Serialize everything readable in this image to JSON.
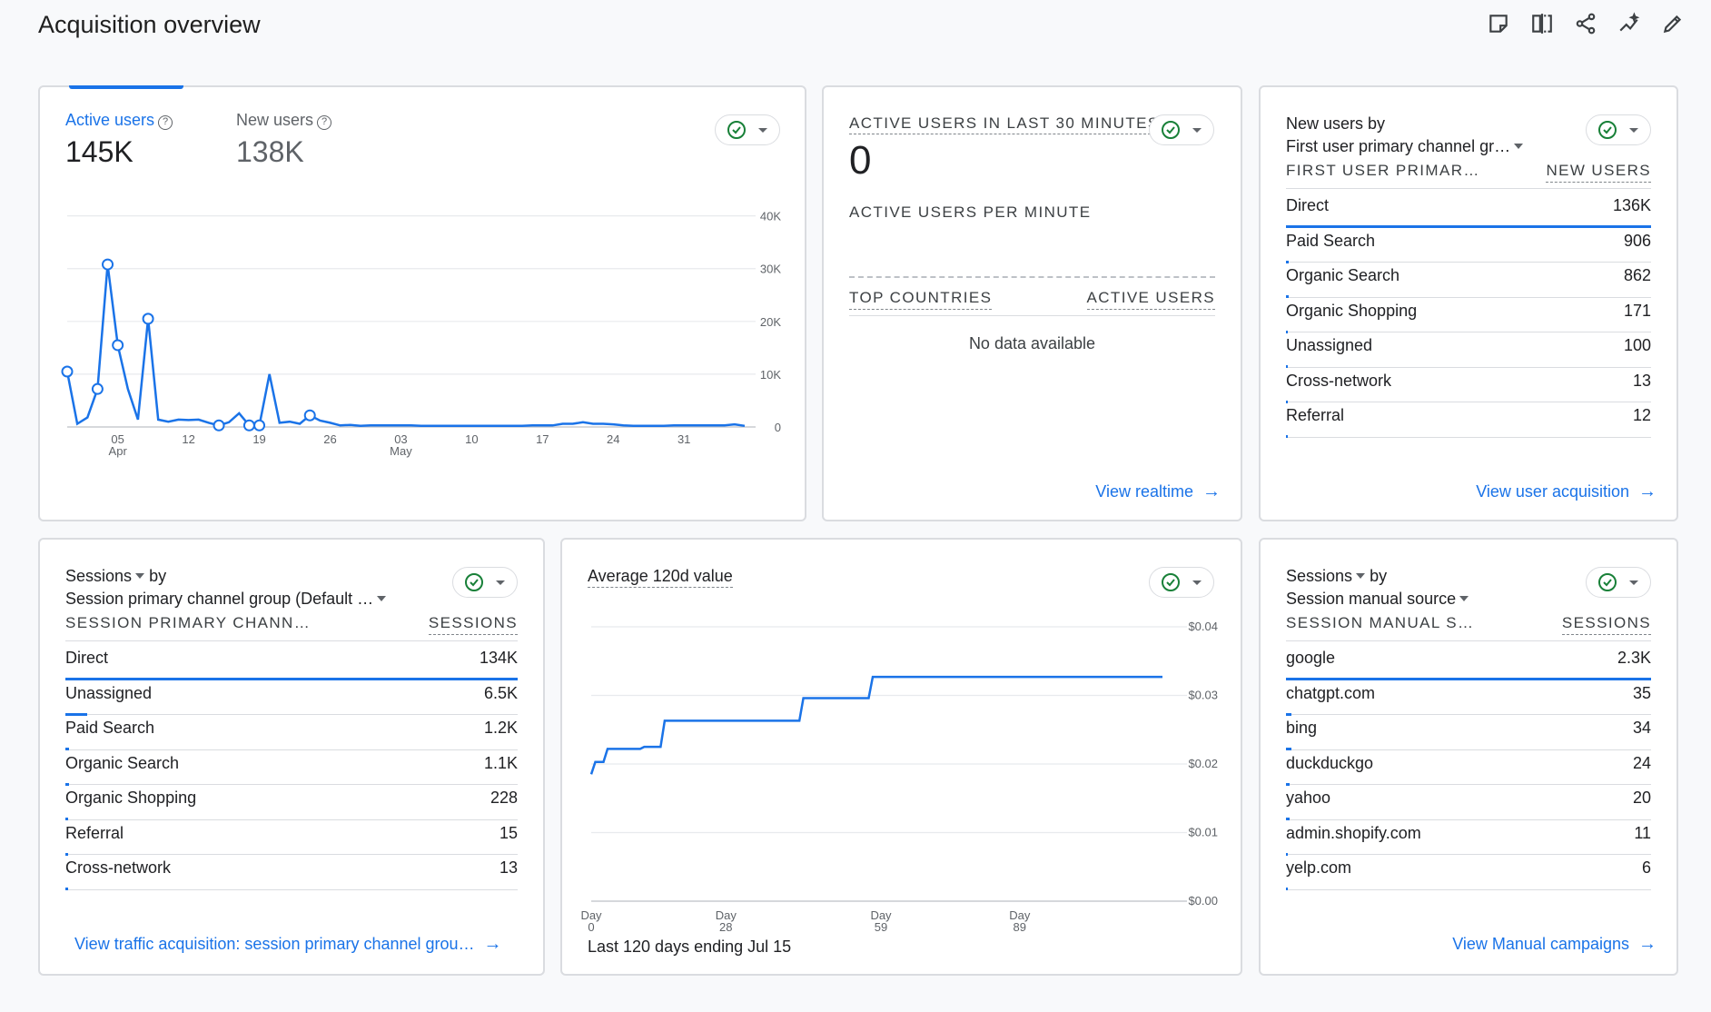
{
  "page": {
    "title": "Acquisition overview"
  },
  "toolbar": {
    "icons": [
      "note-icon",
      "compare-icon",
      "share-icon",
      "insights-icon",
      "edit-icon"
    ]
  },
  "card1": {
    "tabs": [
      {
        "label": "Active users",
        "value": "145K"
      },
      {
        "label": "New users",
        "value": "138K"
      }
    ],
    "help_glyph": "?",
    "chart_data": {
      "type": "line",
      "series": [
        {
          "name": "Active users",
          "values": [
            10500,
            600,
            1800,
            7200,
            30800,
            15500,
            7200,
            1400,
            20500,
            1400,
            1000,
            1400,
            1300,
            1400,
            800,
            300,
            900,
            2600,
            300,
            300,
            10000,
            800,
            1000,
            600,
            2200,
            1200,
            800,
            300,
            400,
            200,
            300,
            300,
            300,
            300,
            300,
            200,
            200,
            200,
            200,
            200,
            200,
            200,
            200,
            200,
            200,
            200,
            300,
            300,
            300,
            600,
            600,
            900,
            600,
            600,
            500,
            300,
            200,
            200,
            200,
            200,
            300,
            300,
            300,
            300,
            300,
            300,
            500,
            200
          ]
        }
      ],
      "x_tick_labels": [
        {
          "top": "05",
          "bottom": "Apr"
        },
        {
          "top": "12",
          "bottom": ""
        },
        {
          "top": "19",
          "bottom": ""
        },
        {
          "top": "26",
          "bottom": ""
        },
        {
          "top": "03",
          "bottom": "May"
        },
        {
          "top": "10",
          "bottom": ""
        },
        {
          "top": "17",
          "bottom": ""
        },
        {
          "top": "24",
          "bottom": ""
        },
        {
          "top": "31",
          "bottom": ""
        }
      ],
      "y_ticks": [
        "0",
        "10K",
        "20K",
        "30K",
        "40K"
      ],
      "ylim": [
        0,
        42000
      ],
      "grid": true,
      "color": "#1a73e8"
    }
  },
  "card2": {
    "title": "ACTIVE USERS IN LAST 30 MINUTES",
    "value": "0",
    "per_minute_label": "ACTIVE USERS PER MINUTE",
    "col1": "TOP COUNTRIES",
    "col2": "ACTIVE USERS",
    "empty": "No data available",
    "link": "View realtime",
    "arrow": "→"
  },
  "card3": {
    "title": "New users by",
    "dimension": "First user primary channel gr…",
    "col1": "FIRST USER PRIMAR…",
    "col2": "NEW USERS",
    "rows": [
      {
        "name": "Direct",
        "value": "136K",
        "share": 1.0
      },
      {
        "name": "Paid Search",
        "value": "906",
        "share": 0.0067
      },
      {
        "name": "Organic Search",
        "value": "862",
        "share": 0.0063
      },
      {
        "name": "Organic Shopping",
        "value": "171",
        "share": 0.0013
      },
      {
        "name": "Unassigned",
        "value": "100",
        "share": 0.0007
      },
      {
        "name": "Cross-network",
        "value": "13",
        "share": 0.0001
      },
      {
        "name": "Referral",
        "value": "12",
        "share": 0.0001
      }
    ],
    "link": "View user acquisition",
    "arrow": "→"
  },
  "card4": {
    "metric": "Sessions",
    "by": "by",
    "dimension": "Session primary channel group (Default …",
    "col1": "SESSION PRIMARY CHANN…",
    "col2": "SESSIONS",
    "rows": [
      {
        "name": "Direct",
        "value": "134K",
        "share": 1.0
      },
      {
        "name": "Unassigned",
        "value": "6.5K",
        "share": 0.048
      },
      {
        "name": "Paid Search",
        "value": "1.2K",
        "share": 0.009
      },
      {
        "name": "Organic Search",
        "value": "1.1K",
        "share": 0.008
      },
      {
        "name": "Organic Shopping",
        "value": "228",
        "share": 0.0017
      },
      {
        "name": "Referral",
        "value": "15",
        "share": 0.0001
      },
      {
        "name": "Cross-network",
        "value": "13",
        "share": 0.0001
      }
    ],
    "link": "View traffic acquisition: session primary channel grou…",
    "arrow": "→"
  },
  "card5": {
    "title": "Average 120d value",
    "footer": "Last 120 days ending Jul 15",
    "chart_data": {
      "type": "line",
      "series": [
        {
          "name": "Average 120d value",
          "points": [
            [
              0,
              0.0185
            ],
            [
              1,
              0.0203
            ],
            [
              3,
              0.0203
            ],
            [
              4,
              0.0222
            ],
            [
              12,
              0.0222
            ],
            [
              13,
              0.0225
            ],
            [
              17,
              0.0225
            ],
            [
              18,
              0.0263
            ],
            [
              51,
              0.0263
            ],
            [
              52,
              0.0296
            ],
            [
              68,
              0.0296
            ],
            [
              69,
              0.0327
            ],
            [
              140,
              0.0327
            ]
          ]
        }
      ],
      "x_ticks": [
        {
          "top": "Day",
          "bottom": "0",
          "x": 0
        },
        {
          "top": "Day",
          "bottom": "28",
          "x": 33
        },
        {
          "top": "Day",
          "bottom": "59",
          "x": 71
        },
        {
          "top": "Day",
          "bottom": "89",
          "x": 105
        }
      ],
      "x_range": [
        0,
        146
      ],
      "y_ticks": [
        "$0.00",
        "$0.01",
        "$0.02",
        "$0.03",
        "$0.04"
      ],
      "ylim": [
        0,
        0.04
      ],
      "grid": true,
      "color": "#1a73e8"
    }
  },
  "card6": {
    "metric": "Sessions",
    "by": "by",
    "dimension": "Session manual source",
    "col1": "SESSION MANUAL S…",
    "col2": "SESSIONS",
    "rows": [
      {
        "name": "google",
        "value": "2.3K",
        "share": 1.0
      },
      {
        "name": "chatgpt.com",
        "value": "35",
        "share": 0.015
      },
      {
        "name": "bing",
        "value": "34",
        "share": 0.015
      },
      {
        "name": "duckduckgo",
        "value": "24",
        "share": 0.01
      },
      {
        "name": "yahoo",
        "value": "20",
        "share": 0.009
      },
      {
        "name": "admin.shopify.com",
        "value": "11",
        "share": 0.005
      },
      {
        "name": "yelp.com",
        "value": "6",
        "share": 0.003
      }
    ],
    "link": "View Manual campaigns",
    "arrow": "→"
  }
}
